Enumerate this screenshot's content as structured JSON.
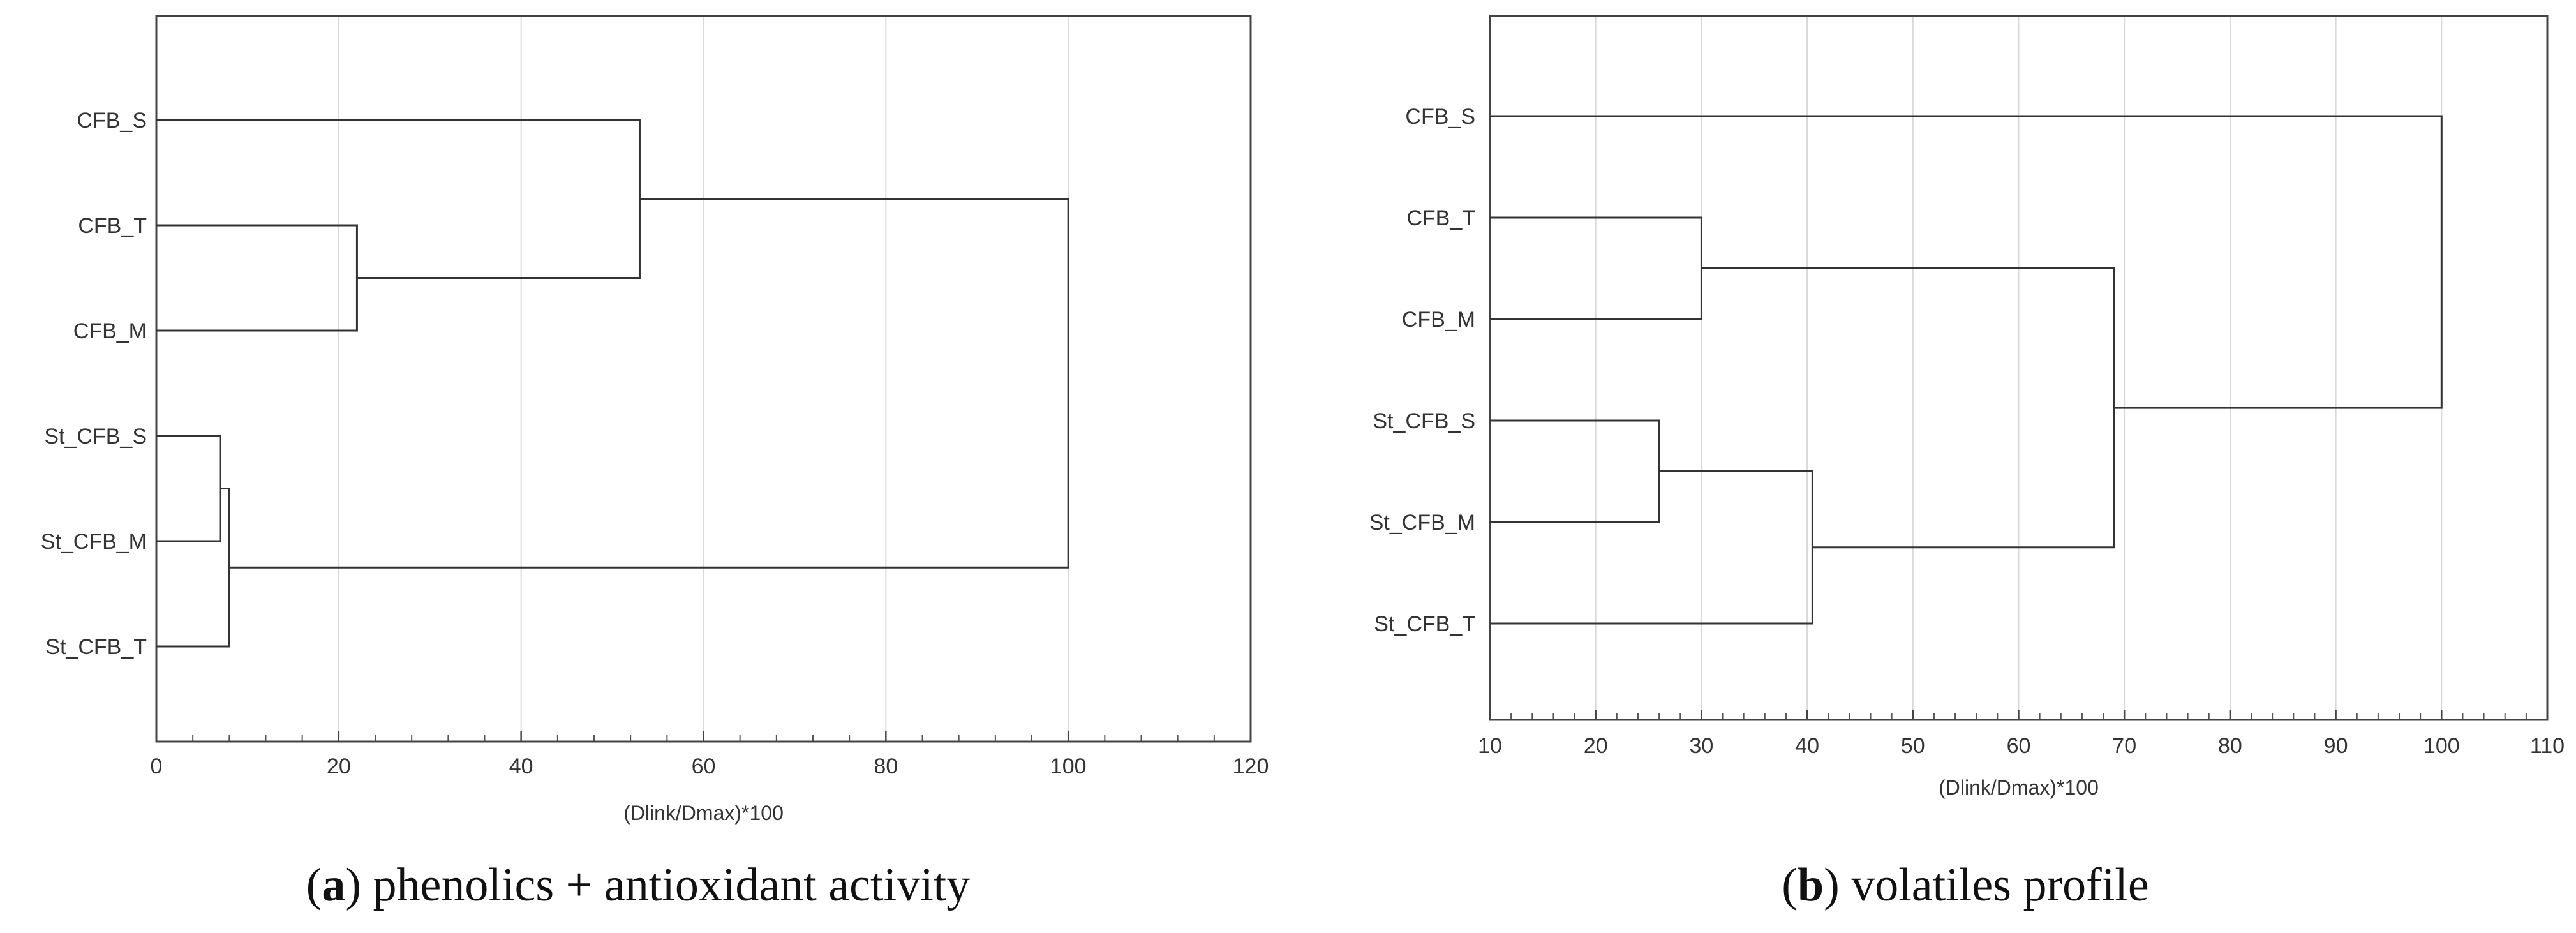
{
  "chart_data": [
    {
      "type": "dendrogram",
      "caption": {
        "letter": "a",
        "prefix": "(",
        "suffix": ") phenolics + antioxidant activity"
      },
      "xlabel": "(Dlink/Dmax)*100",
      "xlim": [
        0,
        120
      ],
      "x_ticks": [
        0,
        20,
        40,
        60,
        80,
        100,
        120
      ],
      "grid": "vertical",
      "leaves": [
        "CFB_S",
        "CFB_T",
        "CFB_M",
        "St_CFB_S",
        "St_CFB_M",
        "St_CFB_T"
      ],
      "merges": [
        {
          "a": "St_CFB_S",
          "b": "St_CFB_M",
          "height": 7
        },
        {
          "a": "St_CFB_S+St_CFB_M",
          "b": "St_CFB_T",
          "height": 8
        },
        {
          "a": "CFB_T",
          "b": "CFB_M",
          "height": 22
        },
        {
          "a": "CFB_S",
          "b": "CFB_T+CFB_M",
          "height": 53
        },
        {
          "a": "CFB_S+CFB_T+CFB_M",
          "b": "St_CFB_S+St_CFB_M+St_CFB_T",
          "height": 100
        }
      ]
    },
    {
      "type": "dendrogram",
      "caption": {
        "letter": "b",
        "prefix": "(",
        "suffix": ") volatiles profile"
      },
      "xlabel": "(Dlink/Dmax)*100",
      "xlim": [
        10,
        110
      ],
      "x_ticks": [
        10,
        20,
        30,
        40,
        50,
        60,
        70,
        80,
        90,
        100,
        110
      ],
      "grid": "vertical",
      "leaves": [
        "CFB_S",
        "CFB_T",
        "CFB_M",
        "St_CFB_S",
        "St_CFB_M",
        "St_CFB_T"
      ],
      "merges": [
        {
          "a": "St_CFB_S",
          "b": "St_CFB_M",
          "height": 26
        },
        {
          "a": "CFB_T",
          "b": "CFB_M",
          "height": 30
        },
        {
          "a": "St_CFB_S+St_CFB_M",
          "b": "St_CFB_T",
          "height": 40.5
        },
        {
          "a": "CFB_T+CFB_M",
          "b": "St_CFB_S+St_CFB_M+St_CFB_T",
          "height": 69
        },
        {
          "a": "CFB_S",
          "b": "CFB_T+CFB_M+St_CFB_S+St_CFB_M+St_CFB_T",
          "height": 100
        }
      ]
    }
  ]
}
